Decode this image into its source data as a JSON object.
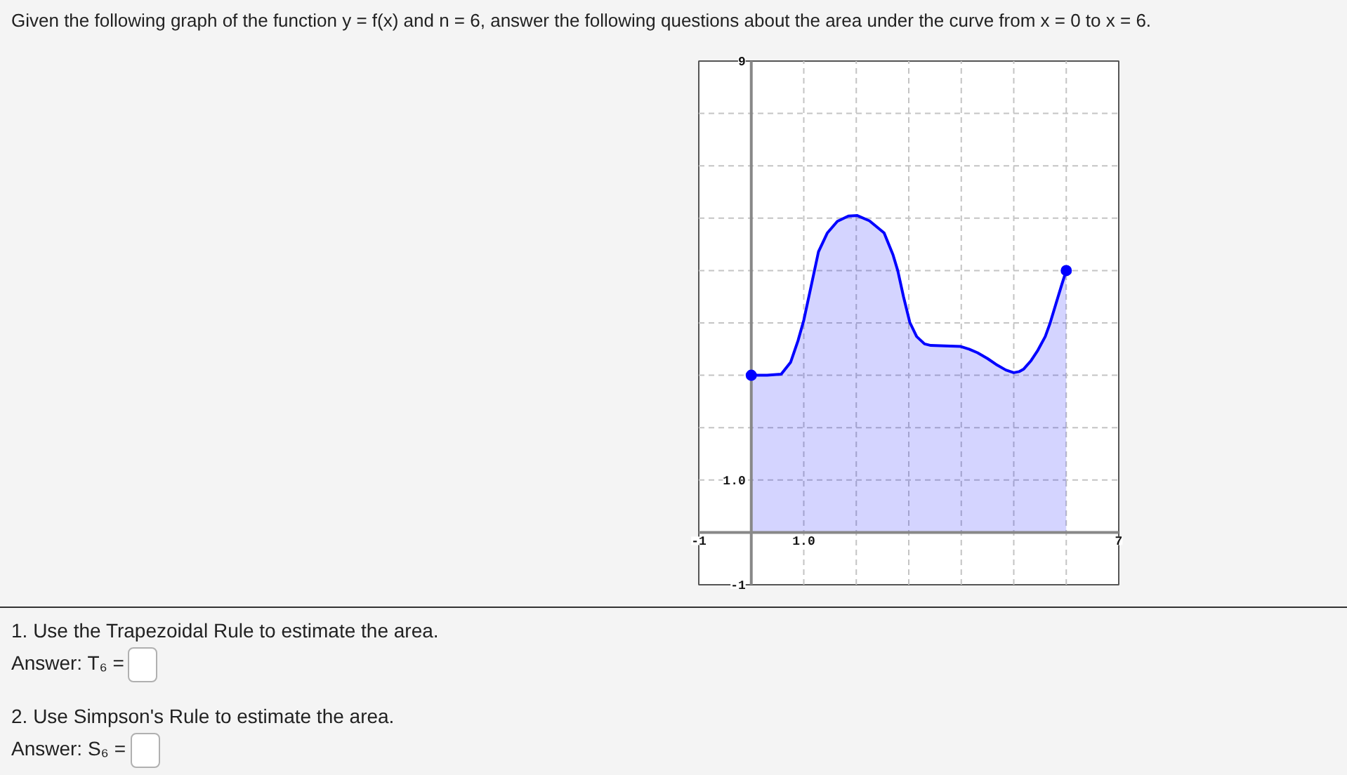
{
  "chart_data": {
    "type": "area",
    "title": "Given the following graph of the function y = f(x) and n = 6, answer the following questions about the area under the curve from x = 0 to x = 6.",
    "annotations": [
      "1. Use the Trapezoidal Rule to estimate the area.",
      "Answer: T₆ =",
      "2. Use Simpson's Rule to estimate the area.",
      "Answer: S₆ ="
    ],
    "xlim": [
      -1,
      7
    ],
    "ylim": [
      -1,
      9
    ],
    "xticks": [
      {
        "value": -1,
        "label": "-1"
      },
      {
        "value": 0,
        "label": null
      },
      {
        "value": 1,
        "label": "1.0"
      },
      {
        "value": 2,
        "label": null
      },
      {
        "value": 3,
        "label": null
      },
      {
        "value": 4,
        "label": null
      },
      {
        "value": 5,
        "label": null
      },
      {
        "value": 6,
        "label": null
      },
      {
        "value": 7,
        "label": "7"
      }
    ],
    "yticks": [
      {
        "value": -1,
        "label": "-1"
      },
      {
        "value": 0,
        "label": null
      },
      {
        "value": 1,
        "label": "1.0"
      },
      {
        "value": 2,
        "label": null
      },
      {
        "value": 3,
        "label": null
      },
      {
        "value": 4,
        "label": null
      },
      {
        "value": 5,
        "label": null
      },
      {
        "value": 6,
        "label": null
      },
      {
        "value": 7,
        "label": null
      },
      {
        "value": 8,
        "label": null
      },
      {
        "value": 9,
        "label": "9"
      }
    ],
    "grid": true,
    "series": [
      {
        "color": "#0000ff",
        "x": [
          0,
          0.3,
          0.57,
          0.75,
          0.89,
          1,
          1.15,
          1.28,
          1.45,
          1.64,
          1.85,
          2.02,
          2.25,
          2.53,
          2.7,
          2.79,
          2.9,
          3.02,
          3.15,
          3.3,
          3.42,
          3.7,
          3.99,
          4.15,
          4.31,
          4.5,
          4.66,
          4.85,
          5,
          5.1,
          5.19,
          5.33,
          5.46,
          5.6,
          5.69,
          5.82,
          5.92,
          6
        ],
        "values": [
          3,
          3,
          3.02,
          3.25,
          3.66,
          4.05,
          4.75,
          5.36,
          5.72,
          5.94,
          6.04,
          6.05,
          5.95,
          5.72,
          5.3,
          5,
          4.5,
          4.01,
          3.74,
          3.6,
          3.57,
          3.56,
          3.55,
          3.5,
          3.43,
          3.32,
          3.21,
          3.1,
          3.05,
          3.07,
          3.12,
          3.28,
          3.48,
          3.74,
          3.99,
          4.42,
          4.75,
          5
        ]
      },
      {
        "type": "scatter",
        "color": "#0000ff",
        "marker": "circle",
        "x": [
          0,
          6
        ],
        "values": [
          3,
          5
        ]
      }
    ]
  }
}
